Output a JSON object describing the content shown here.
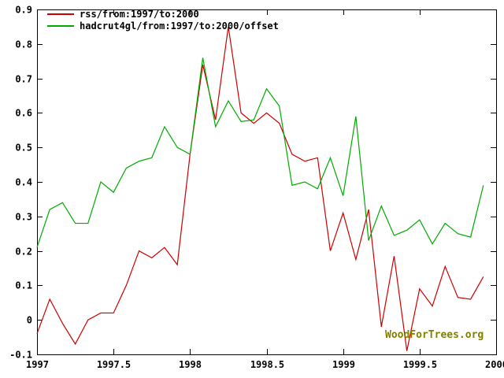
{
  "watermark": "WoodForTrees.org",
  "colors": {
    "background": "#ffffff",
    "axis": "#000000",
    "watermark": "#808000"
  },
  "chart_data": {
    "type": "line",
    "title": "",
    "xlabel": "",
    "ylabel": "",
    "grid": false,
    "legend_position": "top-left",
    "xlim": [
      1997,
      2000
    ],
    "ylim": [
      -0.1,
      0.9
    ],
    "xtick_values": [
      1997,
      1997.5,
      1998,
      1998.5,
      1999,
      1999.5,
      2000
    ],
    "xtick_labels": [
      "1997",
      "1997.5",
      "1998",
      "1998.5",
      "1999",
      "1999.5",
      "2000"
    ],
    "ytick_values": [
      -0.1,
      0,
      0.1,
      0.2,
      0.3,
      0.4,
      0.5,
      0.6,
      0.7,
      0.8,
      0.9
    ],
    "ytick_labels": [
      "-0.1",
      "0",
      "0.1",
      "0.2",
      "0.3",
      "0.4",
      "0.5",
      "0.6",
      "0.7",
      "0.8",
      "0.9"
    ],
    "x_start": 1997.0,
    "x_step": 0.0833333,
    "series": [
      {
        "id": "rss",
        "name": "rss/from:1997/to:2000",
        "color": "#cc0000",
        "values": [
          -0.04,
          0.06,
          -0.01,
          -0.07,
          0.0,
          0.02,
          0.02,
          0.1,
          0.2,
          0.18,
          0.21,
          0.16,
          0.48,
          0.74,
          0.58,
          0.85,
          0.6,
          0.57,
          0.6,
          0.57,
          0.48,
          0.46,
          0.47,
          0.2,
          0.31,
          0.175,
          0.32,
          -0.02,
          0.185,
          -0.09,
          0.09,
          0.04,
          0.155,
          0.065,
          0.06,
          0.125
        ]
      },
      {
        "id": "hadcrut4gl",
        "name": "hadcrut4gl/from:1997/to:2000/offset",
        "color": "#00aa00",
        "values": [
          0.21,
          0.32,
          0.34,
          0.28,
          0.28,
          0.4,
          0.37,
          0.44,
          0.46,
          0.47,
          0.56,
          0.5,
          0.48,
          0.76,
          0.56,
          0.635,
          0.575,
          0.58,
          0.67,
          0.62,
          0.39,
          0.4,
          0.38,
          0.47,
          0.36,
          0.59,
          0.23,
          0.33,
          0.245,
          0.26,
          0.29,
          0.22,
          0.28,
          0.25,
          0.24,
          0.39
        ]
      }
    ]
  }
}
